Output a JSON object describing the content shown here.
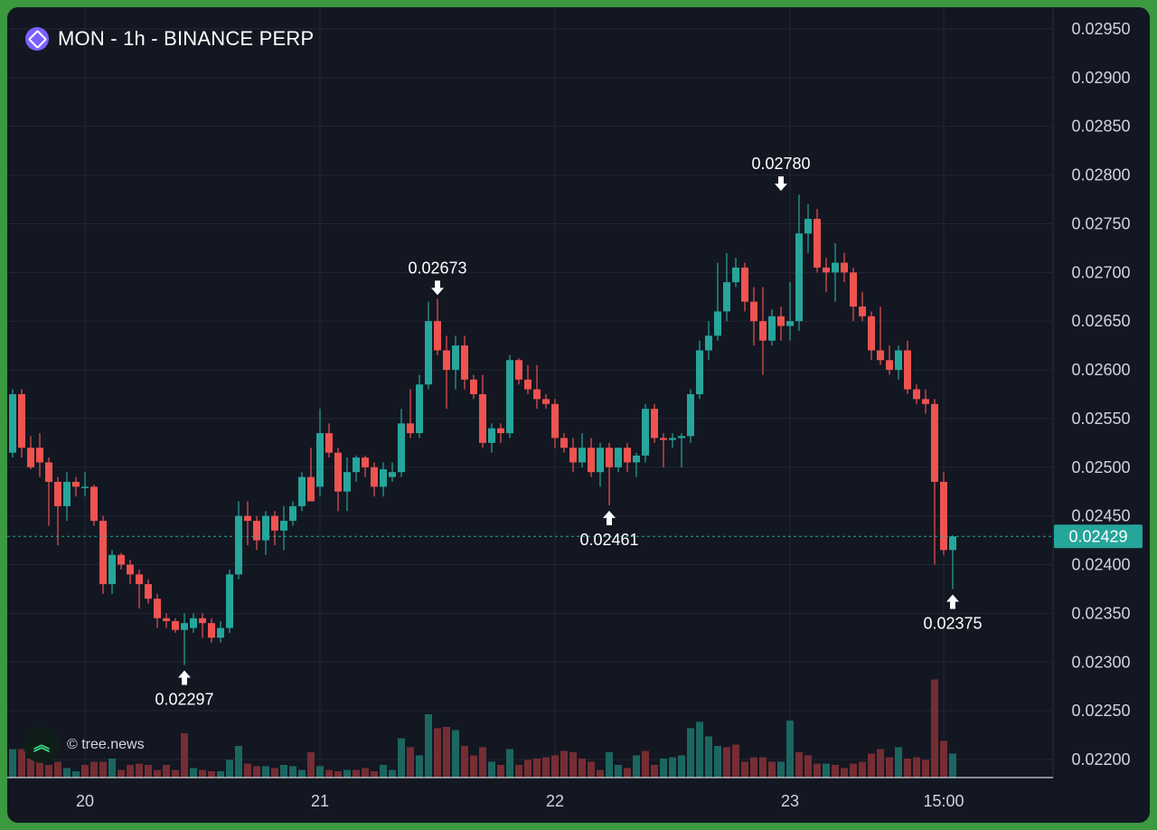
{
  "header": {
    "title": "MON - 1h - BINANCE PERP",
    "logo_icon": "monad-logo-icon"
  },
  "watermark": {
    "text": "© tree.news",
    "icon": "double-chevron-up-icon"
  },
  "colors": {
    "background": "#131722",
    "up": "#26a69a",
    "down": "#ef5350",
    "grid": "#232734",
    "text": "#d1d4dc",
    "price_tag": "#26a69a",
    "frame": "#3b9a3f"
  },
  "chart_data": {
    "type": "candlestick",
    "title": "MON - 1h - BINANCE PERP",
    "y_ticks": [
      "0.02950",
      "0.02900",
      "0.02850",
      "0.02800",
      "0.02750",
      "0.02700",
      "0.02650",
      "0.02600",
      "0.02550",
      "0.02500",
      "0.02450",
      "0.02400",
      "0.02350",
      "0.02300",
      "0.02250",
      "0.02200"
    ],
    "ylim": [
      0.02175,
      0.0296
    ],
    "x_ticks": [
      "20",
      "21",
      "22",
      "23",
      "15:00"
    ],
    "x_tick_index": [
      8,
      34,
      60,
      86,
      103
    ],
    "current_price": "0.02429",
    "annotations": [
      {
        "label": "0.02297",
        "index": 19,
        "price": 0.02297,
        "direction": "up"
      },
      {
        "label": "0.02673",
        "index": 47,
        "price": 0.02673,
        "direction": "down"
      },
      {
        "label": "0.02461",
        "index": 66,
        "price": 0.02461,
        "direction": "up"
      },
      {
        "label": "0.02780",
        "index": 85,
        "price": 0.0278,
        "direction": "down"
      },
      {
        "label": "0.02375",
        "index": 104,
        "price": 0.02375,
        "direction": "up"
      }
    ],
    "candles": [
      [
        0.02515,
        0.0258,
        0.0251,
        0.02575
      ],
      [
        0.02575,
        0.0258,
        0.0251,
        0.0252
      ],
      [
        0.0252,
        0.02532,
        0.02498,
        0.025
      ],
      [
        0.0252,
        0.02535,
        0.0249,
        0.02505
      ],
      [
        0.02505,
        0.0251,
        0.0244,
        0.02485
      ],
      [
        0.02485,
        0.0249,
        0.0242,
        0.0246
      ],
      [
        0.0246,
        0.02495,
        0.02445,
        0.02485
      ],
      [
        0.02485,
        0.0249,
        0.0247,
        0.0248
      ],
      [
        0.0248,
        0.02495,
        0.0247,
        0.0248
      ],
      [
        0.0248,
        0.02482,
        0.0244,
        0.02445
      ],
      [
        0.02445,
        0.0245,
        0.0237,
        0.0238
      ],
      [
        0.0238,
        0.02415,
        0.0237,
        0.0241
      ],
      [
        0.0241,
        0.02412,
        0.02395,
        0.024
      ],
      [
        0.024,
        0.02405,
        0.0238,
        0.0239
      ],
      [
        0.0239,
        0.02395,
        0.02355,
        0.0238
      ],
      [
        0.0238,
        0.02385,
        0.0236,
        0.02365
      ],
      [
        0.02365,
        0.0237,
        0.02335,
        0.02345
      ],
      [
        0.02345,
        0.0235,
        0.02335,
        0.02342
      ],
      [
        0.02342,
        0.02345,
        0.0233,
        0.02333
      ],
      [
        0.02333,
        0.0235,
        0.02297,
        0.0234
      ],
      [
        0.02335,
        0.0235,
        0.0233,
        0.02345
      ],
      [
        0.02345,
        0.0235,
        0.02325,
        0.0234
      ],
      [
        0.0234,
        0.02345,
        0.0232,
        0.02325
      ],
      [
        0.02325,
        0.02342,
        0.0232,
        0.02335
      ],
      [
        0.02335,
        0.02395,
        0.0233,
        0.0239
      ],
      [
        0.0239,
        0.02465,
        0.02385,
        0.0245
      ],
      [
        0.0245,
        0.02465,
        0.0242,
        0.02445
      ],
      [
        0.02445,
        0.0245,
        0.02415,
        0.02425
      ],
      [
        0.02425,
        0.02455,
        0.0241,
        0.0245
      ],
      [
        0.0245,
        0.02455,
        0.0242,
        0.02435
      ],
      [
        0.02435,
        0.0246,
        0.02415,
        0.02445
      ],
      [
        0.02445,
        0.02465,
        0.0244,
        0.0246
      ],
      [
        0.0246,
        0.02495,
        0.02455,
        0.0249
      ],
      [
        0.0249,
        0.0252,
        0.02465,
        0.02465
      ],
      [
        0.0248,
        0.0256,
        0.0247,
        0.02535
      ],
      [
        0.02535,
        0.02545,
        0.0251,
        0.02515
      ],
      [
        0.02515,
        0.0252,
        0.02455,
        0.02475
      ],
      [
        0.02475,
        0.0251,
        0.02455,
        0.02495
      ],
      [
        0.02495,
        0.02512,
        0.02485,
        0.0251
      ],
      [
        0.0251,
        0.02512,
        0.0249,
        0.025
      ],
      [
        0.025,
        0.02505,
        0.0247,
        0.0248
      ],
      [
        0.0248,
        0.02505,
        0.0247,
        0.02498
      ],
      [
        0.0249,
        0.02505,
        0.02485,
        0.02495
      ],
      [
        0.02495,
        0.0256,
        0.0249,
        0.02545
      ],
      [
        0.02545,
        0.0258,
        0.0253,
        0.02535
      ],
      [
        0.02535,
        0.02595,
        0.0253,
        0.02585
      ],
      [
        0.02585,
        0.0267,
        0.0258,
        0.0265
      ],
      [
        0.0265,
        0.02673,
        0.02615,
        0.0262
      ],
      [
        0.0262,
        0.02635,
        0.0256,
        0.026
      ],
      [
        0.026,
        0.02635,
        0.0258,
        0.02625
      ],
      [
        0.02625,
        0.02635,
        0.0258,
        0.0259
      ],
      [
        0.0259,
        0.02595,
        0.0257,
        0.02575
      ],
      [
        0.02575,
        0.02595,
        0.0252,
        0.02525
      ],
      [
        0.02525,
        0.02545,
        0.02515,
        0.0254
      ],
      [
        0.0254,
        0.02545,
        0.02525,
        0.02535
      ],
      [
        0.02535,
        0.02615,
        0.0253,
        0.0261
      ],
      [
        0.0261,
        0.02612,
        0.02585,
        0.0259
      ],
      [
        0.0259,
        0.02605,
        0.02575,
        0.0258
      ],
      [
        0.0258,
        0.02605,
        0.0256,
        0.0257
      ],
      [
        0.0257,
        0.02575,
        0.0256,
        0.02565
      ],
      [
        0.02565,
        0.0257,
        0.0252,
        0.0253
      ],
      [
        0.0253,
        0.02535,
        0.02515,
        0.0252
      ],
      [
        0.0252,
        0.0253,
        0.02495,
        0.02505
      ],
      [
        0.02505,
        0.02535,
        0.025,
        0.0252
      ],
      [
        0.0252,
        0.0253,
        0.0249,
        0.02495
      ],
      [
        0.02495,
        0.02525,
        0.0248,
        0.0252
      ],
      [
        0.0252,
        0.02525,
        0.02461,
        0.025
      ],
      [
        0.025,
        0.0252,
        0.02495,
        0.0252
      ],
      [
        0.0252,
        0.02525,
        0.02495,
        0.02505
      ],
      [
        0.02505,
        0.02515,
        0.0249,
        0.02512
      ],
      [
        0.02512,
        0.02565,
        0.02505,
        0.0256
      ],
      [
        0.0256,
        0.02565,
        0.02525,
        0.0253
      ],
      [
        0.0253,
        0.02535,
        0.025,
        0.02528
      ],
      [
        0.02528,
        0.02535,
        0.0252,
        0.0253
      ],
      [
        0.0253,
        0.02535,
        0.025,
        0.02532
      ],
      [
        0.02532,
        0.0258,
        0.02525,
        0.02575
      ],
      [
        0.02575,
        0.0263,
        0.0257,
        0.0262
      ],
      [
        0.0262,
        0.0265,
        0.0261,
        0.02635
      ],
      [
        0.02635,
        0.0271,
        0.0263,
        0.0266
      ],
      [
        0.0266,
        0.0272,
        0.0265,
        0.0269
      ],
      [
        0.0269,
        0.02715,
        0.02685,
        0.02705
      ],
      [
        0.02705,
        0.0271,
        0.0266,
        0.0267
      ],
      [
        0.0267,
        0.02685,
        0.02625,
        0.0265
      ],
      [
        0.0265,
        0.02685,
        0.02595,
        0.0263
      ],
      [
        0.0263,
        0.02662,
        0.02625,
        0.02655
      ],
      [
        0.02655,
        0.02665,
        0.0263,
        0.02645
      ],
      [
        0.02645,
        0.0269,
        0.0263,
        0.0265
      ],
      [
        0.0265,
        0.0278,
        0.0264,
        0.0274
      ],
      [
        0.0274,
        0.0277,
        0.0272,
        0.02755
      ],
      [
        0.02755,
        0.02765,
        0.027,
        0.02705
      ],
      [
        0.02705,
        0.02715,
        0.0268,
        0.027
      ],
      [
        0.027,
        0.0273,
        0.0267,
        0.0271
      ],
      [
        0.0271,
        0.0272,
        0.0269,
        0.027
      ],
      [
        0.027,
        0.02705,
        0.0265,
        0.02665
      ],
      [
        0.02665,
        0.0268,
        0.0265,
        0.02655
      ],
      [
        0.02655,
        0.0266,
        0.0261,
        0.0262
      ],
      [
        0.0262,
        0.02665,
        0.02605,
        0.0261
      ],
      [
        0.0261,
        0.02625,
        0.02595,
        0.026
      ],
      [
        0.026,
        0.02625,
        0.0259,
        0.0262
      ],
      [
        0.0262,
        0.0263,
        0.02575,
        0.0258
      ],
      [
        0.0258,
        0.02585,
        0.02565,
        0.0257
      ],
      [
        0.0257,
        0.0258,
        0.02555,
        0.02565
      ],
      [
        0.02565,
        0.0257,
        0.024,
        0.02485
      ],
      [
        0.02485,
        0.02495,
        0.0241,
        0.02415
      ],
      [
        0.02415,
        0.0243,
        0.02375,
        0.02429
      ]
    ],
    "volume": [
      {
        "v": 0.45,
        "up": true
      },
      {
        "v": 0.45,
        "up": false
      },
      {
        "v": 0.3,
        "up": false
      },
      {
        "v": 0.35,
        "up": false
      },
      {
        "v": 0.2,
        "up": false
      },
      {
        "v": 0.25,
        "up": false
      },
      {
        "v": 0.15,
        "up": true
      },
      {
        "v": 0.1,
        "up": true
      },
      {
        "v": 0.2,
        "up": false
      },
      {
        "v": 0.25,
        "up": false
      },
      {
        "v": 0.25,
        "up": false
      },
      {
        "v": 0.3,
        "up": true
      },
      {
        "v": 0.12,
        "up": false
      },
      {
        "v": 0.2,
        "up": false
      },
      {
        "v": 0.22,
        "up": false
      },
      {
        "v": 0.2,
        "up": false
      },
      {
        "v": 0.12,
        "up": false
      },
      {
        "v": 0.2,
        "up": false
      },
      {
        "v": 0.12,
        "up": false
      },
      {
        "v": 0.7,
        "up": false
      },
      {
        "v": 0.15,
        "up": true
      },
      {
        "v": 0.12,
        "up": false
      },
      {
        "v": 0.1,
        "up": false
      },
      {
        "v": 0.1,
        "up": true
      },
      {
        "v": 0.28,
        "up": true
      },
      {
        "v": 0.5,
        "up": true
      },
      {
        "v": 0.22,
        "up": false
      },
      {
        "v": 0.18,
        "up": false
      },
      {
        "v": 0.18,
        "up": true
      },
      {
        "v": 0.15,
        "up": false
      },
      {
        "v": 0.2,
        "up": true
      },
      {
        "v": 0.18,
        "up": true
      },
      {
        "v": 0.12,
        "up": true
      },
      {
        "v": 0.4,
        "up": false
      },
      {
        "v": 0.18,
        "up": true
      },
      {
        "v": 0.12,
        "up": false
      },
      {
        "v": 0.1,
        "up": false
      },
      {
        "v": 0.12,
        "up": true
      },
      {
        "v": 0.12,
        "up": false
      },
      {
        "v": 0.15,
        "up": false
      },
      {
        "v": 0.1,
        "up": false
      },
      {
        "v": 0.2,
        "up": true
      },
      {
        "v": 0.12,
        "up": true
      },
      {
        "v": 0.62,
        "up": true
      },
      {
        "v": 0.48,
        "up": false
      },
      {
        "v": 0.35,
        "up": true
      },
      {
        "v": 1.0,
        "up": true
      },
      {
        "v": 0.78,
        "up": false
      },
      {
        "v": 0.8,
        "up": false
      },
      {
        "v": 0.75,
        "up": true
      },
      {
        "v": 0.5,
        "up": false
      },
      {
        "v": 0.35,
        "up": false
      },
      {
        "v": 0.48,
        "up": false
      },
      {
        "v": 0.25,
        "up": true
      },
      {
        "v": 0.2,
        "up": false
      },
      {
        "v": 0.45,
        "up": true
      },
      {
        "v": 0.2,
        "up": false
      },
      {
        "v": 0.28,
        "up": false
      },
      {
        "v": 0.3,
        "up": false
      },
      {
        "v": 0.32,
        "up": false
      },
      {
        "v": 0.35,
        "up": false
      },
      {
        "v": 0.42,
        "up": false
      },
      {
        "v": 0.4,
        "up": false
      },
      {
        "v": 0.3,
        "up": false
      },
      {
        "v": 0.25,
        "up": false
      },
      {
        "v": 0.12,
        "up": false
      },
      {
        "v": 0.4,
        "up": true
      },
      {
        "v": 0.2,
        "up": true
      },
      {
        "v": 0.15,
        "up": false
      },
      {
        "v": 0.35,
        "up": true
      },
      {
        "v": 0.42,
        "up": false
      },
      {
        "v": 0.2,
        "up": false
      },
      {
        "v": 0.3,
        "up": true
      },
      {
        "v": 0.32,
        "up": true
      },
      {
        "v": 0.35,
        "up": true
      },
      {
        "v": 0.78,
        "up": true
      },
      {
        "v": 0.88,
        "up": true
      },
      {
        "v": 0.65,
        "up": true
      },
      {
        "v": 0.5,
        "up": true
      },
      {
        "v": 0.48,
        "up": false
      },
      {
        "v": 0.52,
        "up": false
      },
      {
        "v": 0.25,
        "up": false
      },
      {
        "v": 0.32,
        "up": false
      },
      {
        "v": 0.32,
        "up": false
      },
      {
        "v": 0.25,
        "up": false
      },
      {
        "v": 0.25,
        "up": true
      },
      {
        "v": 0.9,
        "up": true
      },
      {
        "v": 0.4,
        "up": false
      },
      {
        "v": 0.35,
        "up": false
      },
      {
        "v": 0.22,
        "up": false
      },
      {
        "v": 0.22,
        "up": true
      },
      {
        "v": 0.2,
        "up": false
      },
      {
        "v": 0.15,
        "up": false
      },
      {
        "v": 0.22,
        "up": false
      },
      {
        "v": 0.25,
        "up": false
      },
      {
        "v": 0.38,
        "up": false
      },
      {
        "v": 0.45,
        "up": false
      },
      {
        "v": 0.32,
        "up": false
      },
      {
        "v": 0.48,
        "up": true
      },
      {
        "v": 0.3,
        "up": false
      },
      {
        "v": 0.32,
        "up": false
      },
      {
        "v": 0.28,
        "up": false
      },
      {
        "v": 1.55,
        "up": false
      },
      {
        "v": 0.58,
        "up": false
      },
      {
        "v": 0.38,
        "up": true
      }
    ]
  }
}
